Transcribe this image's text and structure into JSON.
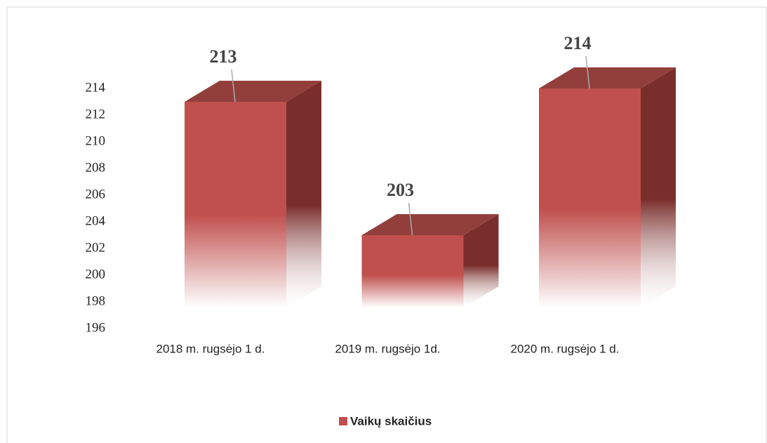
{
  "chart_data": {
    "type": "bar3d",
    "categories": [
      "2018 m. rugsėjo 1 d.",
      "2019 m. rugsėjo 1d.",
      "2020 m. rugsėjo 1 d."
    ],
    "series": [
      {
        "name": "Vaikų skaičius",
        "color": "#c0504d",
        "values": [
          213,
          203,
          214
        ]
      }
    ],
    "ylim": [
      196,
      216
    ],
    "yticks": [
      196,
      198,
      200,
      202,
      204,
      206,
      208,
      210,
      212,
      214
    ],
    "grid": false,
    "legend": "bottom"
  }
}
